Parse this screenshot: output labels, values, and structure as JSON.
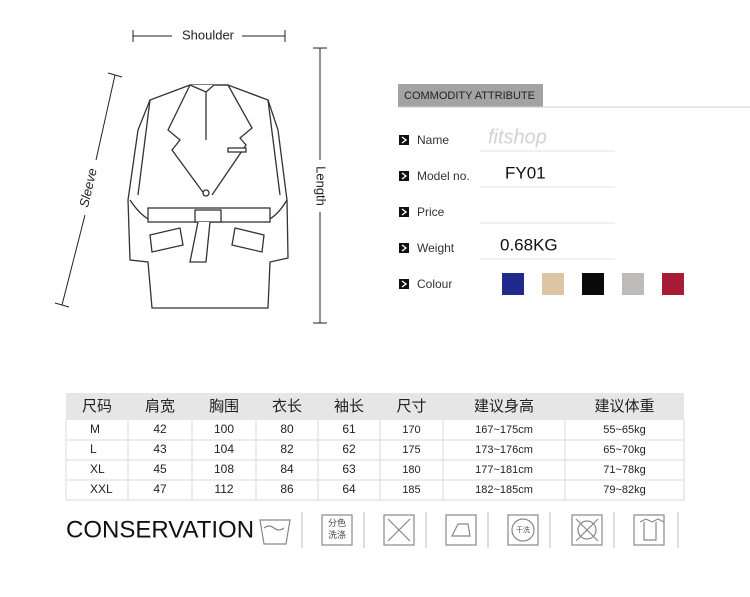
{
  "diagram": {
    "shoulder": "Shoulder",
    "sleeve": "Sleeve",
    "length": "Length"
  },
  "attributes": {
    "title": "COMMODITY ATTRIBUTE",
    "rows": [
      {
        "label": "Name",
        "value": "fitshop"
      },
      {
        "label": "Model no.",
        "value": "FY01"
      },
      {
        "label": "Price"
      },
      {
        "label": "Weight",
        "value": "0.68KG"
      },
      {
        "label": "Colour",
        "colors": [
          "#1f2a8c",
          "#dcc4a4",
          "#0a0a0a",
          "#bdbbb9",
          "#a71c35"
        ]
      }
    ]
  },
  "size_table": {
    "header": [
      "尺码",
      "肩宽",
      "胸围",
      "衣长",
      "袖长",
      "尺寸",
      "建议身高",
      "建议体重"
    ],
    "rows": [
      [
        "M",
        42,
        100,
        80,
        61,
        170,
        "167~175cm",
        "55~65kg"
      ],
      [
        "L",
        43,
        104,
        82,
        62,
        175,
        "173~176cm",
        "65~70kg"
      ],
      [
        "XL",
        45,
        108,
        84,
        63,
        180,
        "177~181cm",
        "71~78kg"
      ],
      [
        "XXL",
        47,
        112,
        86,
        64,
        185,
        "182~185cm",
        "79~82kg"
      ]
    ]
  },
  "conservation": {
    "title": "CONSERVATION",
    "icon_labels": [
      "分色洗涤",
      "干洗"
    ]
  }
}
